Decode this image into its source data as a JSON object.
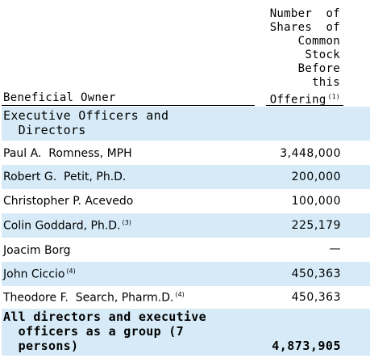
{
  "header": {
    "owner_col": "Beneficial Owner",
    "shares_col_lines": [
      "Number  of",
      "Shares  of",
      "Common",
      "Stock",
      "Before",
      "this",
      "Offering"
    ],
    "shares_col_footnote": "(1)"
  },
  "section": {
    "line1": "Executive Officers and",
    "line2": "  Directors"
  },
  "rows": [
    {
      "name": "Paul A.  Romness, MPH",
      "note": "",
      "value": "3,448,000"
    },
    {
      "name": "Robert G.  Petit, Ph.D.",
      "note": "",
      "value": "200,000"
    },
    {
      "name": "Christopher P. Acevedo",
      "note": "",
      "value": "100,000"
    },
    {
      "name": "Colin Goddard, Ph.D.",
      "note": "(3)",
      "value": "225,179"
    },
    {
      "name": "Joacim Borg",
      "note": "",
      "value": "—"
    },
    {
      "name": "John Ciccio",
      "note": "(4)",
      "value": "450,363"
    },
    {
      "name": "Theodore F.  Search, Pharm.D.",
      "note": "(4)",
      "value": "450,363"
    }
  ],
  "total": {
    "line1": "All directors and executive",
    "line2": "  officers as a group (7",
    "line3": "  persons)",
    "value": "4,873,905"
  },
  "colors": {
    "shade": "#d6ebf7"
  }
}
